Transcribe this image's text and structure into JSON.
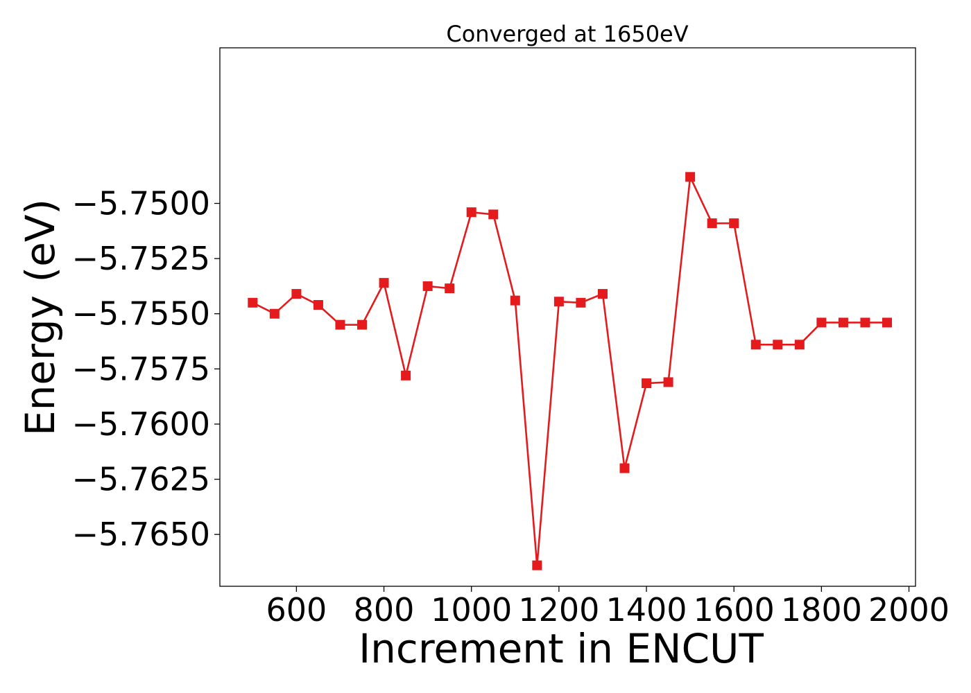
{
  "chart_data": {
    "type": "line",
    "title": "Converged at 1650eV",
    "xlabel": "Increment in ENCUT",
    "ylabel": "Energy (eV)",
    "xlim": [
      425,
      2015
    ],
    "ylim": [
      -5.76735,
      -5.74295
    ],
    "x_ticks": [
      600,
      800,
      1000,
      1200,
      1400,
      1600,
      1800,
      2000
    ],
    "y_ticks": [
      -5.75,
      -5.7525,
      -5.755,
      -5.7575,
      -5.76,
      -5.7625,
      -5.765
    ],
    "y_tick_labels": [
      "−5.7500",
      "−5.7525",
      "−5.7550",
      "−5.7575",
      "−5.7600",
      "−5.7625",
      "−5.7650"
    ],
    "grid": false,
    "series": [
      {
        "color": "#e41a1c",
        "marker": "square",
        "x": [
          500,
          550,
          600,
          650,
          700,
          750,
          800,
          850,
          900,
          950,
          1000,
          1050,
          1100,
          1150,
          1200,
          1250,
          1300,
          1350,
          1400,
          1450,
          1500,
          1550,
          1600,
          1650,
          1700,
          1750,
          1800,
          1850,
          1900,
          1950
        ],
        "y": [
          -5.7545,
          -5.755,
          -5.7541,
          -5.7546,
          -5.7555,
          -5.7555,
          -5.7536,
          -5.7578,
          -5.75375,
          -5.75385,
          -5.7504,
          -5.7505,
          -5.7544,
          -5.7664,
          -5.75445,
          -5.7545,
          -5.7541,
          -5.762,
          -5.75815,
          -5.7581,
          -5.7488,
          -5.7509,
          -5.7509,
          -5.7564,
          -5.7564,
          -5.7564,
          -5.7554,
          -5.7554,
          -5.7554,
          -5.7554
        ]
      }
    ]
  }
}
